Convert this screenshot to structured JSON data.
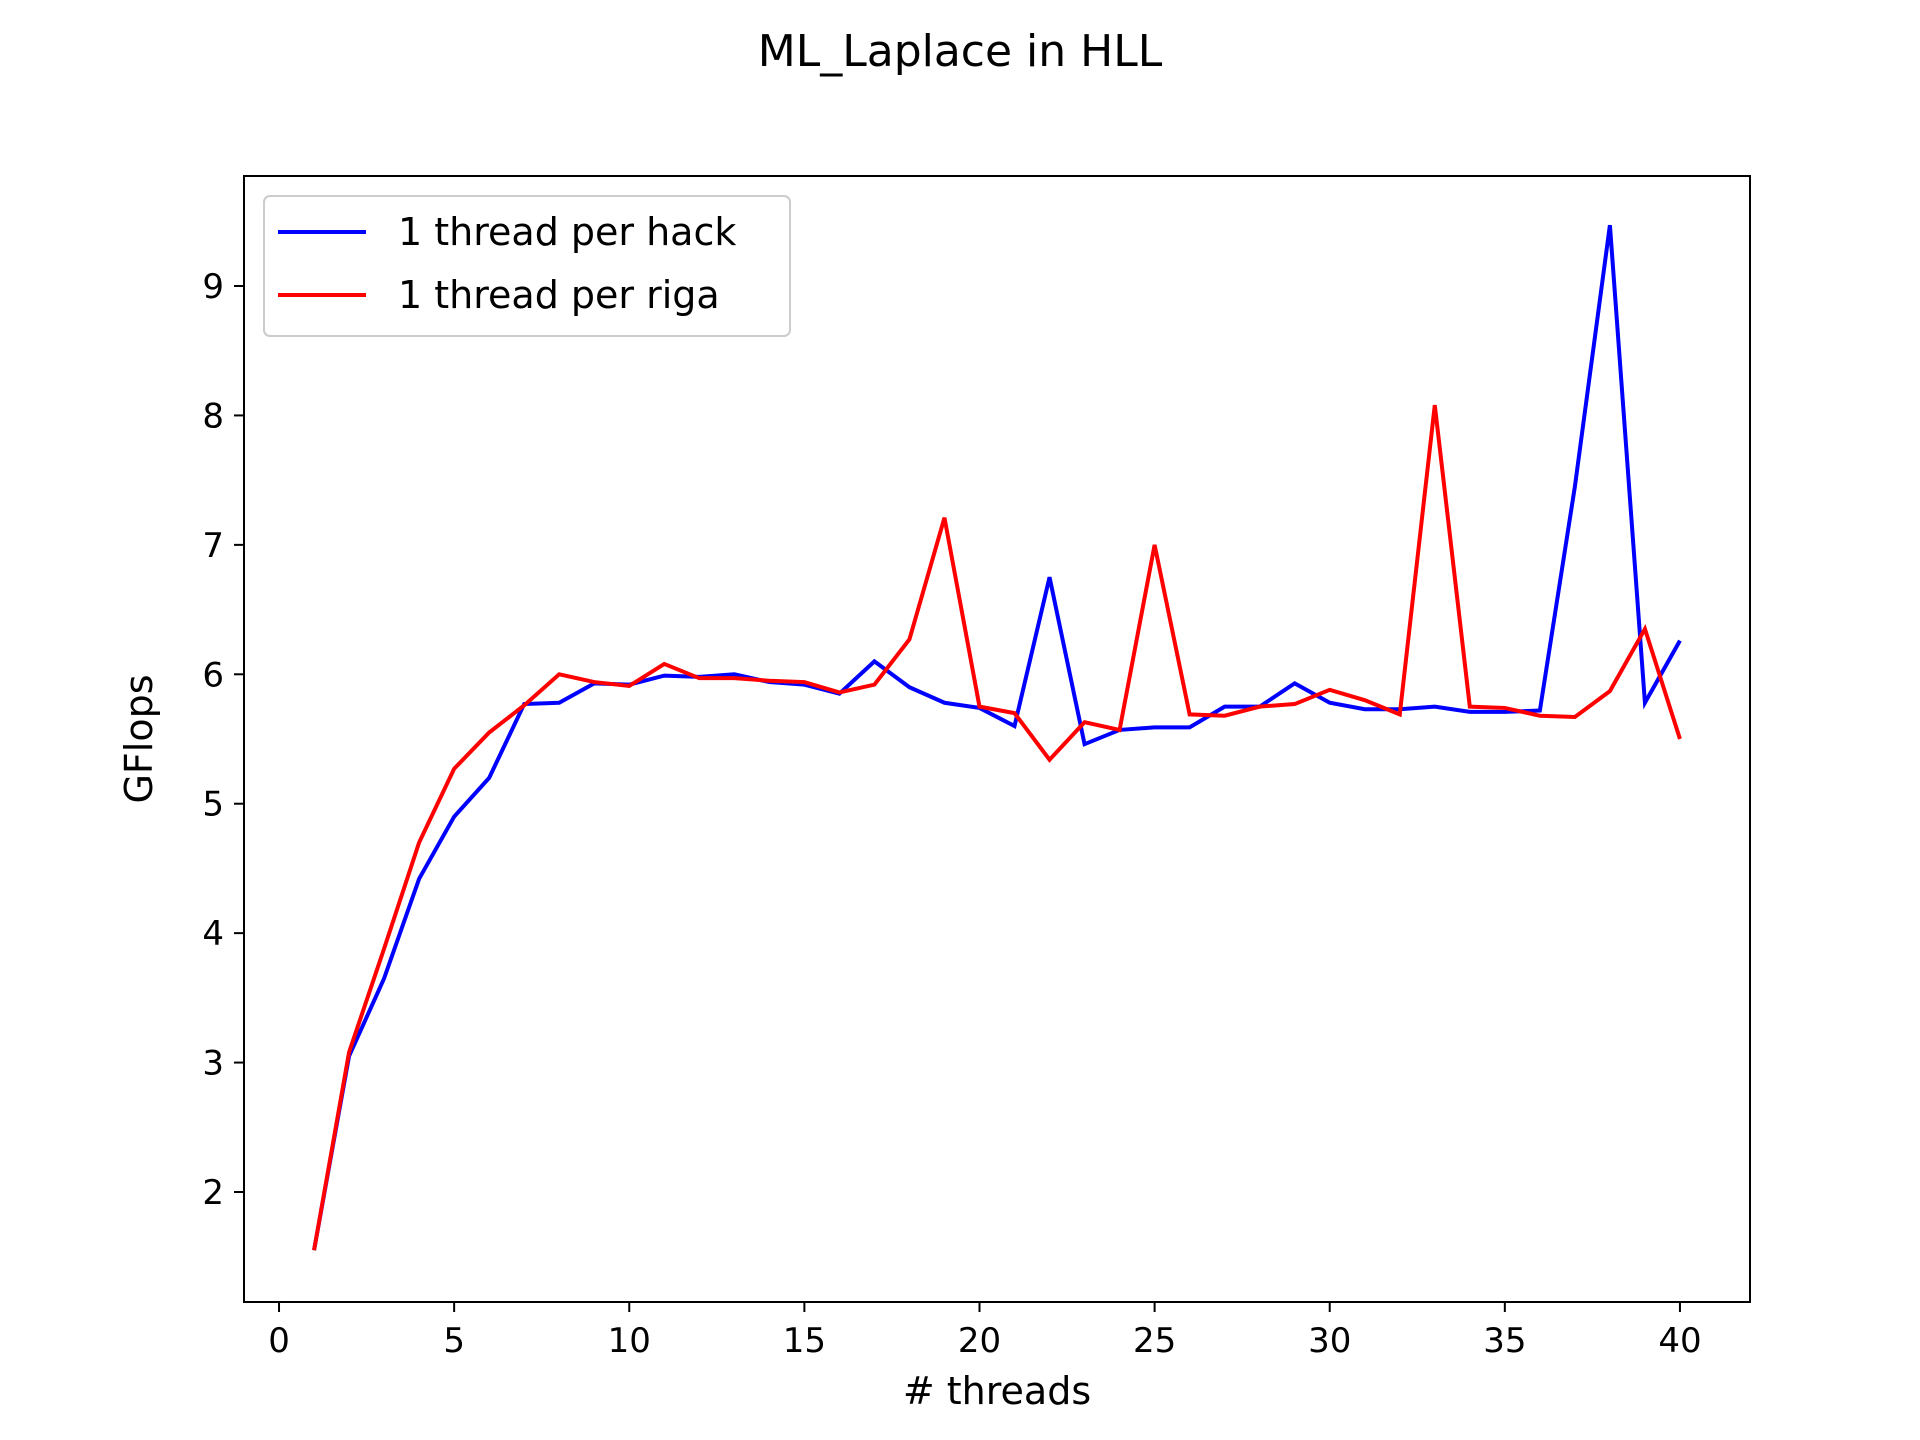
{
  "chart_data": {
    "type": "line",
    "title": "ML_Laplace in HLL",
    "xlabel": "# threads",
    "ylabel": "GFlops",
    "xlim": [
      -1,
      42
    ],
    "ylim": [
      1.15,
      9.85
    ],
    "xticks": [
      0,
      5,
      10,
      15,
      20,
      25,
      30,
      35,
      40
    ],
    "yticks": [
      2,
      3,
      4,
      5,
      6,
      7,
      8,
      9
    ],
    "grid": false,
    "legend_position": "top-left",
    "x": [
      1,
      2,
      3,
      4,
      5,
      6,
      7,
      8,
      9,
      10,
      11,
      12,
      13,
      14,
      15,
      16,
      17,
      18,
      19,
      20,
      21,
      22,
      23,
      24,
      25,
      26,
      27,
      28,
      29,
      30,
      31,
      32,
      33,
      34,
      35,
      36,
      37,
      38,
      39,
      40
    ],
    "series": [
      {
        "name": "1 thread per hack",
        "color": "#0000ff",
        "values": [
          1.55,
          3.05,
          3.65,
          4.42,
          4.9,
          5.2,
          5.77,
          5.78,
          5.93,
          5.92,
          5.99,
          5.98,
          6.0,
          5.94,
          5.92,
          5.85,
          6.1,
          5.9,
          5.78,
          5.74,
          5.6,
          6.75,
          5.46,
          5.57,
          5.59,
          5.59,
          5.75,
          5.75,
          5.93,
          5.78,
          5.73,
          5.73,
          5.75,
          5.71,
          5.71,
          5.72,
          7.45,
          9.47,
          5.78,
          6.26
        ]
      },
      {
        "name": "1 thread per riga",
        "color": "#ff0000",
        "values": [
          1.55,
          3.08,
          3.88,
          4.7,
          5.27,
          5.55,
          5.76,
          6.0,
          5.94,
          5.91,
          6.08,
          5.97,
          5.97,
          5.95,
          5.94,
          5.86,
          5.92,
          6.27,
          7.21,
          5.75,
          5.7,
          5.34,
          5.63,
          5.57,
          7.0,
          5.69,
          5.68,
          5.75,
          5.77,
          5.88,
          5.8,
          5.69,
          8.08,
          5.75,
          5.74,
          5.68,
          5.67,
          5.87,
          6.35,
          5.5
        ]
      }
    ]
  }
}
